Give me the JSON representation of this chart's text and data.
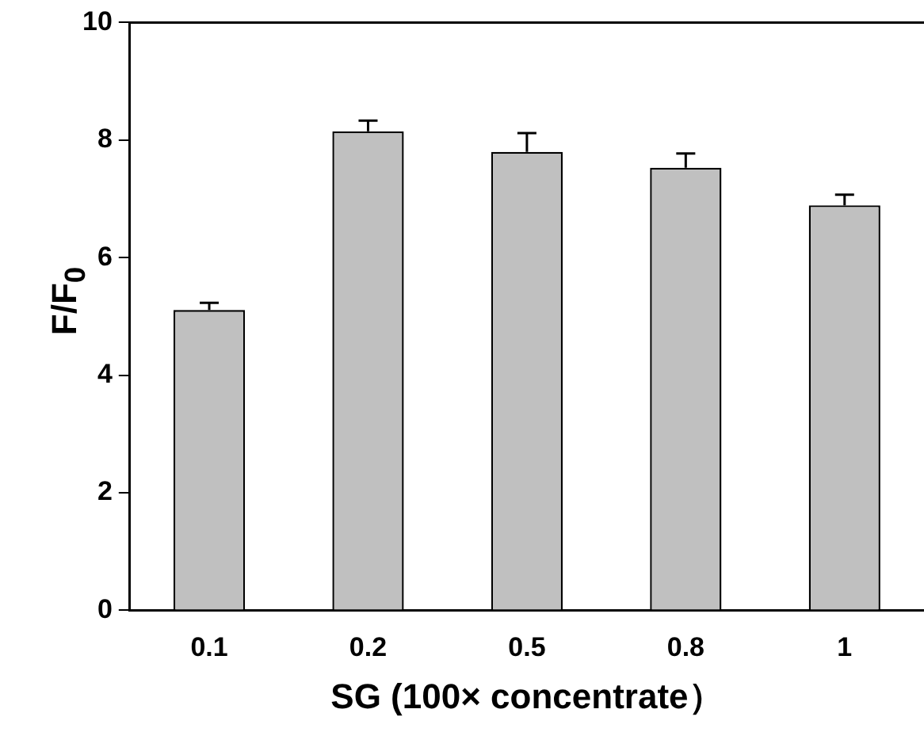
{
  "chart_data": {
    "type": "bar",
    "xlabel": "SG (100× concentrate）",
    "ylabel": "F/F$_{0}$",
    "categories": [
      "0.1",
      "0.2",
      "0.5",
      "0.8",
      "1"
    ],
    "values": [
      5.11,
      8.15,
      7.8,
      7.53,
      6.89
    ],
    "errors": [
      0.12,
      0.18,
      0.32,
      0.24,
      0.18
    ],
    "color": "#c0c0c0",
    "ylim": [
      0,
      10
    ],
    "yticks": [
      0,
      2,
      4,
      6,
      8,
      10
    ],
    "grid": false,
    "legend": false
  }
}
